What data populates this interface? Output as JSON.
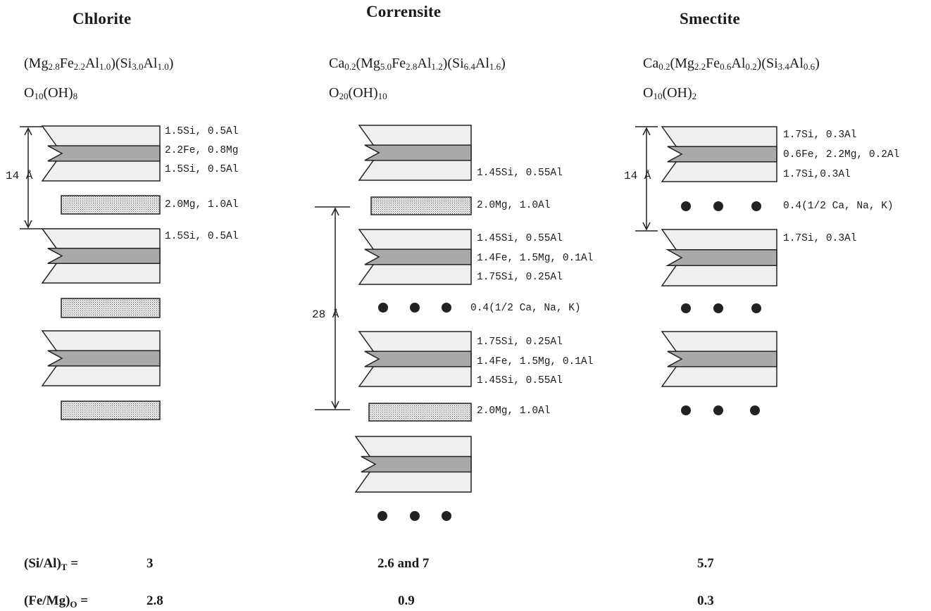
{
  "minerals": {
    "chlorite": {
      "name": "Chlorite",
      "formula": {
        "line1": [
          [
            "t",
            "(Mg"
          ],
          [
            "s",
            "2.8"
          ],
          [
            "t",
            "Fe"
          ],
          [
            "s",
            "2.2"
          ],
          [
            "t",
            "Al"
          ],
          [
            "s",
            "1.0"
          ],
          [
            "t",
            ")(Si"
          ],
          [
            "s",
            "3.0"
          ],
          [
            "t",
            "Al"
          ],
          [
            "s",
            "1.0"
          ],
          [
            "t",
            ")"
          ]
        ],
        "line2": [
          [
            "t",
            "O"
          ],
          [
            "s",
            "10"
          ],
          [
            "t",
            "(OH)"
          ],
          [
            "s",
            "8"
          ]
        ]
      },
      "labels": [
        "1.5Si, 0.5Al",
        "2.2Fe, 0.8Mg",
        "1.5Si, 0.5Al",
        "2.0Mg, 1.0Al",
        "1.5Si, 0.5Al"
      ],
      "spacing": "14 Å"
    },
    "corrensite": {
      "name": "Corrensite",
      "formula": {
        "line1": [
          [
            "t",
            "Ca"
          ],
          [
            "s",
            "0.2"
          ],
          [
            "t",
            "(Mg"
          ],
          [
            "s",
            "5.0"
          ],
          [
            "t",
            "Fe"
          ],
          [
            "s",
            "2.8"
          ],
          [
            "t",
            "Al"
          ],
          [
            "s",
            "1.2"
          ],
          [
            "t",
            ")(Si"
          ],
          [
            "s",
            "6.4"
          ],
          [
            "t",
            "Al"
          ],
          [
            "s",
            "1.6"
          ],
          [
            "t",
            ")"
          ]
        ],
        "line2": [
          [
            "t",
            "O"
          ],
          [
            "s",
            "20"
          ],
          [
            "t",
            "(OH)"
          ],
          [
            "s",
            "10"
          ]
        ]
      },
      "labels": [
        "1.45Si, 0.55Al",
        "2.0Mg, 1.0Al",
        "1.45Si, 0.55Al",
        "1.4Fe, 1.5Mg, 0.1Al",
        "1.75Si, 0.25Al",
        "0.4(1/2 Ca, Na, K)",
        "1.75Si, 0.25Al",
        "1.4Fe, 1.5Mg, 0.1Al",
        "1.45Si, 0.55Al",
        "2.0Mg, 1.0Al"
      ],
      "spacing": "28 Å"
    },
    "smectite": {
      "name": "Smectite",
      "formula": {
        "line1": [
          [
            "t",
            "Ca"
          ],
          [
            "s",
            "0.2"
          ],
          [
            "t",
            "(Mg"
          ],
          [
            "s",
            "2.2"
          ],
          [
            "t",
            "Fe"
          ],
          [
            "s",
            "0.6"
          ],
          [
            "t",
            "Al"
          ],
          [
            "s",
            "0.2"
          ],
          [
            "t",
            ")(Si"
          ],
          [
            "s",
            "3.4"
          ],
          [
            "t",
            "Al"
          ],
          [
            "s",
            "0.6"
          ],
          [
            "t",
            ")"
          ]
        ],
        "line2": [
          [
            "t",
            "O"
          ],
          [
            "s",
            "10"
          ],
          [
            "t",
            "(OH)"
          ],
          [
            "s",
            "2"
          ]
        ]
      },
      "labels": [
        "1.7Si, 0.3Al",
        "0.6Fe, 2.2Mg, 0.2Al",
        "1.7Si,0.3Al",
        "0.4(1/2 Ca, Na, K)",
        "1.7Si, 0.3Al"
      ],
      "spacing": "14 Å"
    }
  },
  "ratios": {
    "si_al": {
      "label": [
        [
          "t",
          "(Si/Al)"
        ],
        [
          "s",
          "T"
        ],
        [
          "t",
          " ="
        ]
      ],
      "chlorite": "3",
      "corrensite": "2.6 and 7",
      "smectite": "5.7"
    },
    "fe_mg": {
      "label": [
        [
          "t",
          "(Fe/Mg)"
        ],
        [
          "s",
          "O"
        ],
        [
          "t",
          " ="
        ]
      ],
      "chlorite": "2.8",
      "corrensite": "0.9",
      "smectite": "0.3"
    }
  },
  "colors": {
    "outer_sheet": "#efefef",
    "octahedral_sheet": "#a9a9a9",
    "brucite_stipple": "#cfcfcf",
    "cation_dot": "#222222",
    "line": "#222222"
  }
}
